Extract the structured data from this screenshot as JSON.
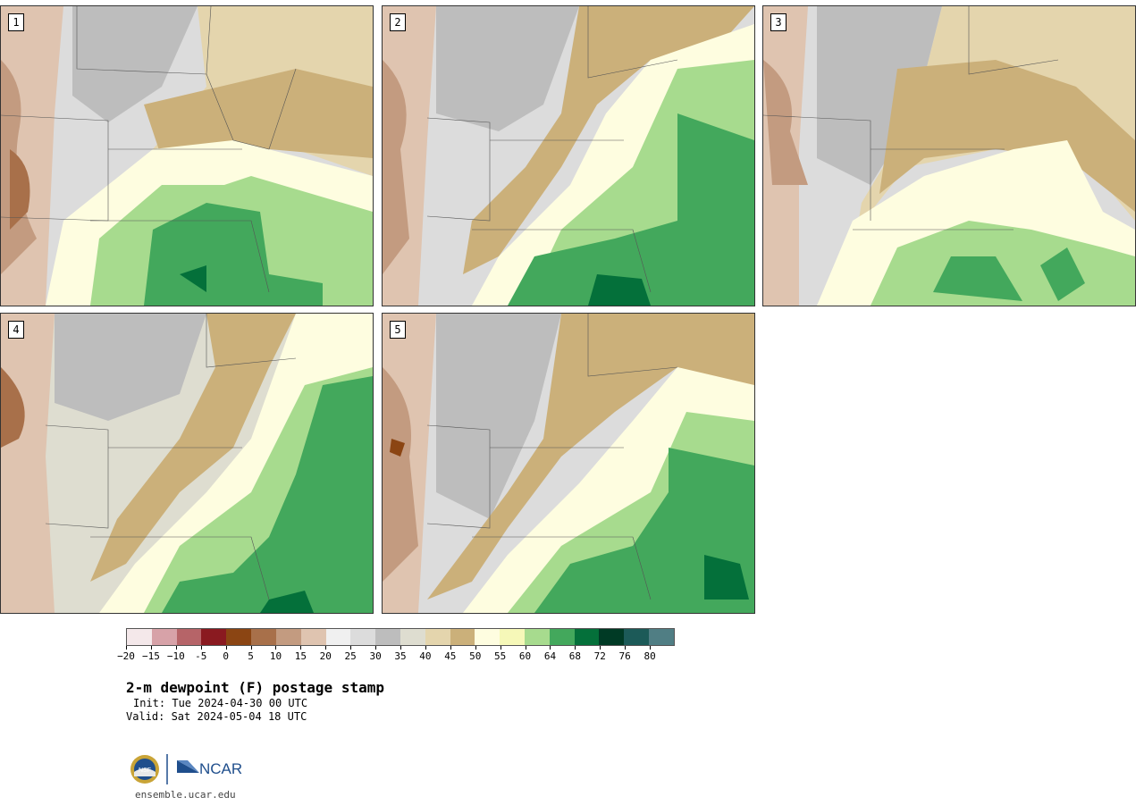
{
  "panels": [
    {
      "label": "1"
    },
    {
      "label": "2"
    },
    {
      "label": "3"
    },
    {
      "label": "4"
    },
    {
      "label": "5"
    }
  ],
  "colorbar": {
    "tick_labels": [
      "−20",
      "−15",
      "−10",
      "-5",
      "0",
      "5",
      "10",
      "15",
      "20",
      "25",
      "30",
      "35",
      "40",
      "45",
      "50",
      "55",
      "60",
      "64",
      "68",
      "72",
      "76",
      "80"
    ],
    "colors": [
      "#f4e8ea",
      "#d7a2a8",
      "#b66468",
      "#8a1a20",
      "#8b4513",
      "#a8704a",
      "#c39b80",
      "#dfc4b0",
      "#f0f0f0",
      "#dcdcdc",
      "#bdbdbd",
      "#deddd0",
      "#e4d5ad",
      "#cbb07a",
      "#fefde0",
      "#f6f8b8",
      "#a7db8e",
      "#43a85c",
      "#04703a",
      "#003a25",
      "#1c5a58",
      "#507e84"
    ]
  },
  "title": "2-m dewpoint (F) postage stamp",
  "init": "Init: Tue 2024-04-30 00 UTC",
  "valid": "Valid: Sat 2024-05-04 18 UTC",
  "logo": {
    "nsf": "NSF",
    "ncar": "NCAR"
  },
  "url": "ensemble.ucar.edu"
}
